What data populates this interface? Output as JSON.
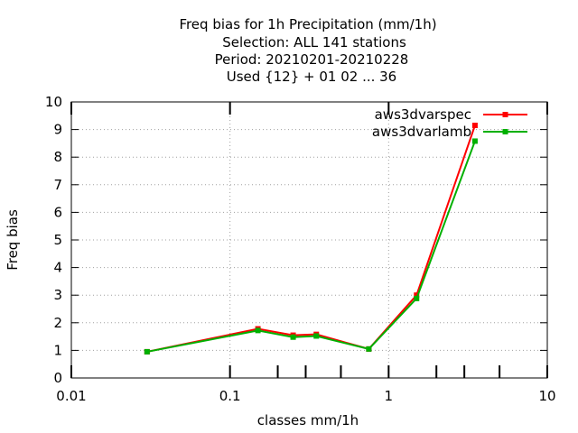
{
  "chart_data": {
    "type": "line",
    "title": [
      "Freq bias  for 1h Precipitation (mm/1h)",
      "Selection: ALL    141 stations",
      "Period: 20210201-20210228",
      "Used {12} + 01 02 ... 36"
    ],
    "xlabel": "classes mm/1h",
    "ylabel": "Freq bias",
    "x_scale": "log",
    "xlim": [
      0.01,
      10
    ],
    "ylim": [
      0,
      10
    ],
    "x_ticks": [
      0.01,
      0.1,
      1,
      10
    ],
    "x_tick_labels": [
      "0.01",
      "0.1",
      "1",
      "10"
    ],
    "x_minor_ticks": [
      0.2,
      0.3,
      0.5,
      2,
      3,
      5
    ],
    "y_ticks": [
      0,
      1,
      2,
      3,
      4,
      5,
      6,
      7,
      8,
      9,
      10
    ],
    "y_tick_labels": [
      "0",
      "1",
      "2",
      "3",
      "4",
      "5",
      "6",
      "7",
      "8",
      "9",
      "10"
    ],
    "grid": true,
    "legend_position": "top-right",
    "series": [
      {
        "name": "aws3dvarspec",
        "color": "#ff0000",
        "points": [
          {
            "x": 0.03,
            "y": 0.95
          },
          {
            "x": 0.15,
            "y": 1.78
          },
          {
            "x": 0.25,
            "y": 1.55
          },
          {
            "x": 0.35,
            "y": 1.58
          },
          {
            "x": 0.75,
            "y": 1.05
          },
          {
            "x": 1.5,
            "y": 3.0
          },
          {
            "x": 3.5,
            "y": 9.15
          }
        ]
      },
      {
        "name": "aws3dvarlamb",
        "color": "#00b000",
        "points": [
          {
            "x": 0.03,
            "y": 0.95
          },
          {
            "x": 0.15,
            "y": 1.72
          },
          {
            "x": 0.25,
            "y": 1.48
          },
          {
            "x": 0.35,
            "y": 1.52
          },
          {
            "x": 0.75,
            "y": 1.05
          },
          {
            "x": 1.5,
            "y": 2.88
          },
          {
            "x": 3.5,
            "y": 8.58
          }
        ]
      }
    ]
  }
}
